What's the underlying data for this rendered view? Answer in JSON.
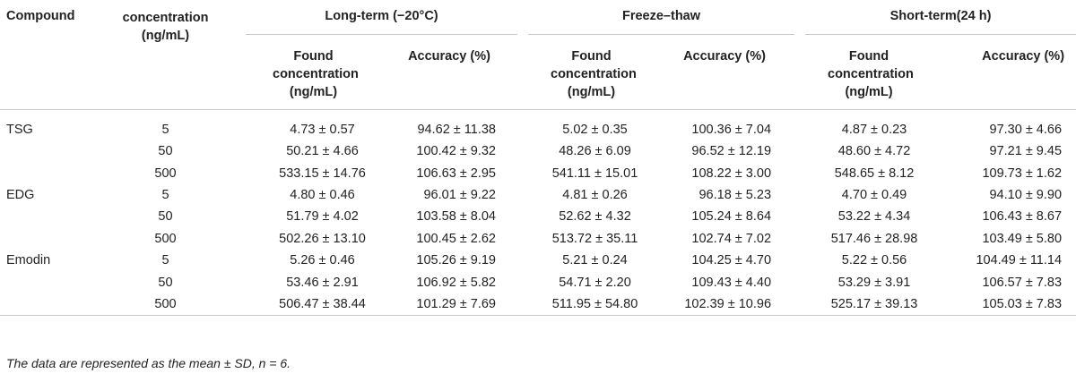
{
  "headers": {
    "compound": "Compound",
    "concentration": "concentration (ng/mL)",
    "groups": [
      "Long-term (−20°C)",
      "Freeze–thaw",
      "Short-term(24 h)"
    ],
    "found": "Found concentration (ng/mL)",
    "accuracy": "Accuracy (%)"
  },
  "rows": [
    {
      "compound": "TSG",
      "conc": "5",
      "lt_found": "4.73 ± 0.57",
      "lt_acc": "94.62 ± 11.38",
      "ft_found": "5.02 ± 0.35",
      "ft_acc": "100.36 ± 7.04",
      "st_found": "4.87 ± 0.23",
      "st_acc": "97.30 ± 4.66"
    },
    {
      "compound": "",
      "conc": "50",
      "lt_found": "50.21 ± 4.66",
      "lt_acc": "100.42 ± 9.32",
      "ft_found": "48.26 ± 6.09",
      "ft_acc": "96.52 ± 12.19",
      "st_found": "48.60 ± 4.72",
      "st_acc": "97.21 ± 9.45"
    },
    {
      "compound": "",
      "conc": "500",
      "lt_found": "533.15 ± 14.76",
      "lt_acc": "106.63 ± 2.95",
      "ft_found": "541.11 ± 15.01",
      "ft_acc": "108.22 ± 3.00",
      "st_found": "548.65 ± 8.12",
      "st_acc": "109.73 ± 1.62"
    },
    {
      "compound": "EDG",
      "conc": "5",
      "lt_found": "4.80 ± 0.46",
      "lt_acc": "96.01 ± 9.22",
      "ft_found": "4.81 ± 0.26",
      "ft_acc": "96.18 ± 5.23",
      "st_found": "4.70 ± 0.49",
      "st_acc": "94.10 ± 9.90"
    },
    {
      "compound": "",
      "conc": "50",
      "lt_found": "51.79 ± 4.02",
      "lt_acc": "103.58 ± 8.04",
      "ft_found": "52.62 ± 4.32",
      "ft_acc": "105.24 ± 8.64",
      "st_found": "53.22 ± 4.34",
      "st_acc": "106.43 ± 8.67"
    },
    {
      "compound": "",
      "conc": "500",
      "lt_found": "502.26 ± 13.10",
      "lt_acc": "100.45 ± 2.62",
      "ft_found": "513.72 ± 35.11",
      "ft_acc": "102.74 ± 7.02",
      "st_found": "517.46 ± 28.98",
      "st_acc": "103.49 ± 5.80"
    },
    {
      "compound": "Emodin",
      "conc": "5",
      "lt_found": "5.26 ± 0.46",
      "lt_acc": "105.26 ± 9.19",
      "ft_found": "5.21 ± 0.24",
      "ft_acc": "104.25 ± 4.70",
      "st_found": "5.22 ± 0.56",
      "st_acc": "104.49 ± 11.14"
    },
    {
      "compound": "",
      "conc": "50",
      "lt_found": "53.46 ± 2.91",
      "lt_acc": "106.92 ± 5.82",
      "ft_found": "54.71 ± 2.20",
      "ft_acc": "109.43 ± 4.40",
      "st_found": "53.29 ± 3.91",
      "st_acc": "106.57 ± 7.83"
    },
    {
      "compound": "",
      "conc": "500",
      "lt_found": "506.47 ± 38.44",
      "lt_acc": "101.29 ± 7.69",
      "ft_found": "511.95 ± 54.80",
      "ft_acc": "102.39 ± 10.96",
      "st_found": "525.17 ± 39.13",
      "st_acc": "105.03 ± 7.83"
    }
  ],
  "footnote": "The data are represented as the mean ± SD, n = 6."
}
